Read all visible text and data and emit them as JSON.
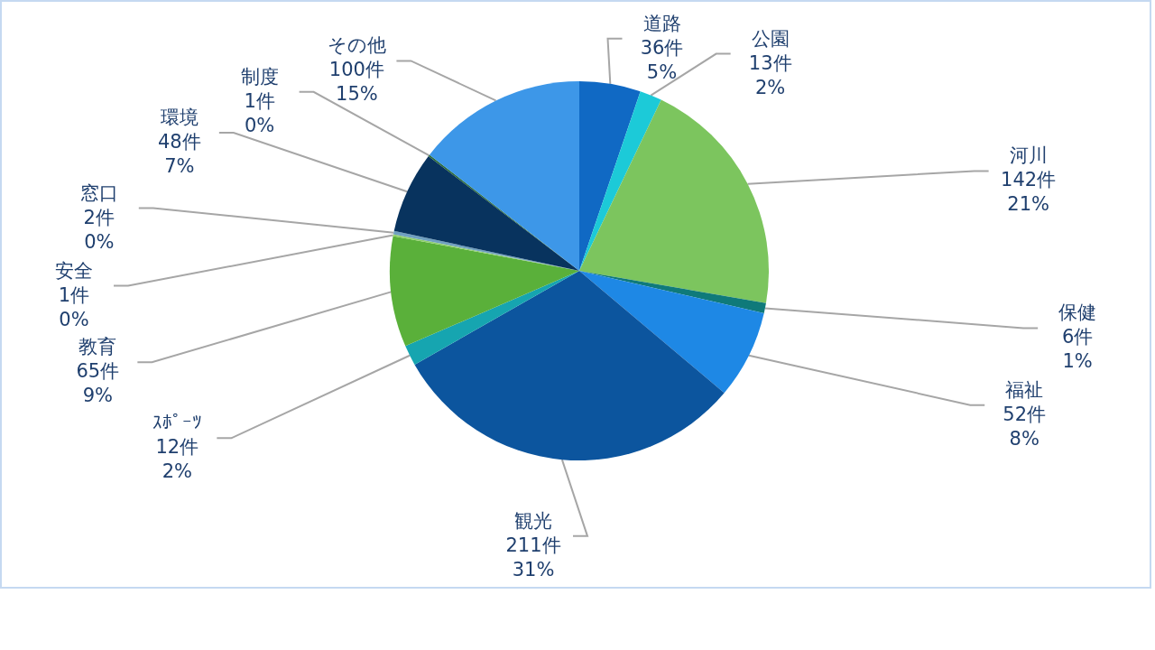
{
  "chart_data": {
    "type": "pie",
    "categories": [
      "道路",
      "公園",
      "河川",
      "保健",
      "福祉",
      "観光",
      "ｽﾎﾟｰﾂ",
      "教育",
      "安全",
      "窓口",
      "環境",
      "制度",
      "その他"
    ],
    "values": [
      36,
      13,
      142,
      6,
      52,
      211,
      12,
      65,
      1,
      2,
      48,
      1,
      100
    ],
    "colors": [
      "#1069c4",
      "#1ccad8",
      "#7cc55e",
      "#0f7a7a",
      "#1e88e5",
      "#0c559e",
      "#16a5b0",
      "#5ab03a",
      "#8fd06a",
      "#6fa0c0",
      "#08335e",
      "#2a6a3a",
      "#3d97e8"
    ],
    "value_labels": [
      "36件\n5%",
      "13件\n2%",
      "142件\n21%",
      "6件\n1%",
      "52件\n8%",
      "211件\n31%",
      "12件\n2%",
      "65件\n9%",
      "1件\n0%",
      "2件\n0%",
      "48件\n7%",
      "1件\n0%",
      "100件\n15%"
    ]
  }
}
